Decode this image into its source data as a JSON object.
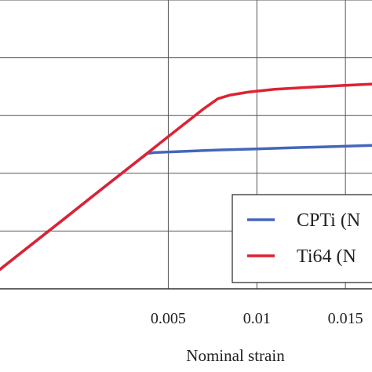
{
  "chart_data": {
    "type": "line",
    "xlabel": "Nominal strain",
    "ylabel": "",
    "xlim": [
      -0.0045,
      0.0165
    ],
    "ylim": [
      0,
      1100
    ],
    "x_ticks": [
      0.005,
      0.01,
      0.015
    ],
    "x_tick_labels": [
      "0.005",
      "0.01",
      "0.015"
    ],
    "y_grid": [
      220,
      440,
      660,
      880,
      1100
    ],
    "grid": true,
    "legend_position": "lower-right",
    "series": [
      {
        "name": "CPTi (N",
        "color": "#4466bb",
        "x": [
          -0.0045,
          -0.003,
          -0.001,
          0.001,
          0.003,
          0.0038,
          0.0042,
          0.006,
          0.008,
          0.01,
          0.012,
          0.014,
          0.0165
        ],
        "y": [
          74,
          154,
          260,
          367,
          473,
          515,
          519,
          524,
          529,
          533,
          537,
          541,
          546
        ]
      },
      {
        "name": "Ti64 (N",
        "color": "#dd2233",
        "x": [
          -0.0045,
          -0.003,
          -0.001,
          0.001,
          0.003,
          0.005,
          0.007,
          0.0073,
          0.0078,
          0.0085,
          0.0095,
          0.011,
          0.013,
          0.015,
          0.0165
        ],
        "y": [
          74,
          154,
          260,
          367,
          473,
          580,
          686,
          700,
          724,
          738,
          749,
          760,
          768,
          775,
          780
        ]
      }
    ]
  }
}
